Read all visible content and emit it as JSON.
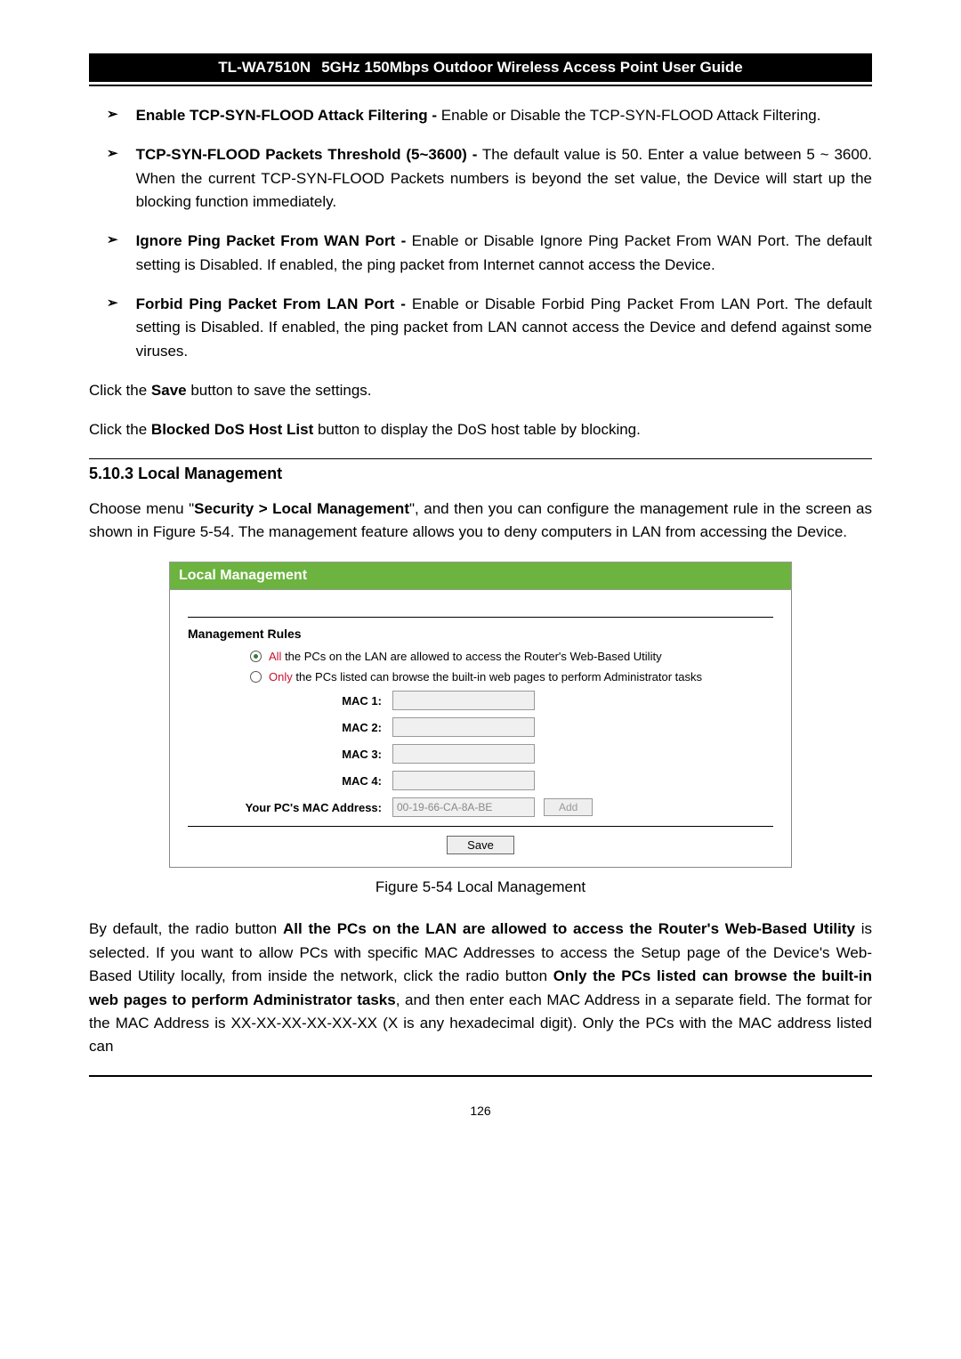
{
  "header": {
    "model": "TL-WA7510N",
    "title": "5GHz 150Mbps Outdoor Wireless Access Point User Guide"
  },
  "bullets": [
    {
      "bold": "Enable TCP-SYN-FLOOD Attack Filtering -",
      "text": " Enable or Disable the TCP-SYN-FLOOD Attack Filtering."
    },
    {
      "bold": "TCP-SYN-FLOOD Packets Threshold (5~3600) -",
      "text": " The default value is 50. Enter a value between 5 ~ 3600. When the current TCP-SYN-FLOOD Packets numbers is beyond the set value, the Device will start up the blocking function immediately."
    },
    {
      "bold": "Ignore Ping Packet From WAN Port -",
      "text": " Enable or Disable Ignore Ping Packet From WAN Port. The default setting is Disabled. If enabled, the ping packet from Internet cannot access the Device."
    },
    {
      "bold": "Forbid Ping Packet From LAN Port -",
      "text": " Enable or Disable Forbid Ping Packet From LAN Port. The default setting is Disabled. If enabled, the ping packet from LAN cannot access the Device and defend against some viruses."
    }
  ],
  "paragraphs": {
    "click_save_prefix": "Click the ",
    "click_save_bold": "Save",
    "click_save_suffix": " button to save the settings.",
    "blocked_prefix": "Click the ",
    "blocked_bold": "Blocked DoS Host List",
    "blocked_suffix": " button to display the DoS host table by blocking.",
    "choose_prefix": "Choose menu \"",
    "choose_bold": "Security > Local Management",
    "choose_suffix": "\", and then you can configure the management rule in the screen as shown in Figure 5-54. The management feature allows you to deny computers in LAN from accessing the Device.",
    "bottom_prefix": "By default, the radio button ",
    "bottom_bold1": "All the PCs on the LAN are allowed to access the Router's Web-Based Utility",
    "bottom_mid1": " is selected. If you want to allow PCs with specific MAC Addresses to access the Setup page of the Device's Web-Based Utility locally, from inside the network, click the radio button ",
    "bottom_bold2": "Only the PCs listed can browse the built-in web pages to perform Administrator tasks",
    "bottom_suffix": ", and then enter each MAC Address in a separate field. The format for the MAC Address is XX-XX-XX-XX-XX-XX (X is any hexadecimal digit). Only the PCs with the MAC address listed can"
  },
  "section": {
    "number": "5.10.3",
    "title": "Local Management"
  },
  "panel": {
    "header": "Local Management",
    "section_title": "Management Rules",
    "radio_all_highlight": "All",
    "radio_all_text": " the PCs on the LAN are allowed to access the Router's Web-Based Utility",
    "radio_only_highlight": "Only",
    "radio_only_text": " the PCs listed can browse the built-in web pages to perform Administrator tasks",
    "mac_labels": [
      "MAC 1:",
      "MAC 2:",
      "MAC 3:",
      "MAC 4:"
    ],
    "your_pc_label": "Your PC's MAC Address:",
    "your_pc_value": "00-19-66-CA-8A-BE",
    "add_button": "Add",
    "save_button": "Save"
  },
  "figure_caption": "Figure 5-54 Local Management",
  "page_number": "126",
  "colors": {
    "header_bg": "#000000",
    "panel_header_bg": "#6cb33f",
    "highlight_red": "#c8102e"
  }
}
